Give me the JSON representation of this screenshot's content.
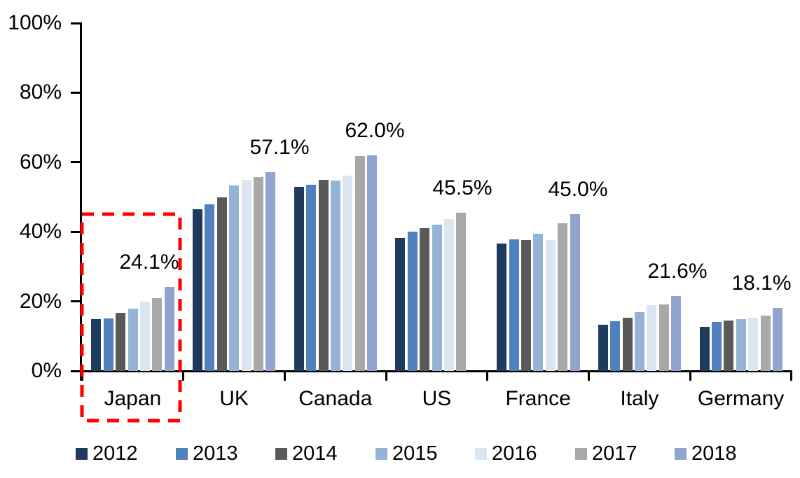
{
  "chart_data": {
    "type": "bar",
    "title": "",
    "categories": [
      "Japan",
      "UK",
      "Canada",
      "US",
      "France",
      "Italy",
      "Germany"
    ],
    "series": [
      {
        "name": "2012",
        "color": "#1F3A5F",
        "values": [
          14.9,
          46.4,
          53.0,
          38.2,
          36.6,
          13.3,
          12.6
        ]
      },
      {
        "name": "2013",
        "color": "#4E81BD",
        "values": [
          15.1,
          47.8,
          53.5,
          40.1,
          37.8,
          14.2,
          14.1
        ]
      },
      {
        "name": "2014",
        "color": "#595959",
        "values": [
          16.8,
          50.0,
          55.0,
          41.0,
          37.7,
          15.4,
          14.4
        ]
      },
      {
        "name": "2015",
        "color": "#95B3D7",
        "values": [
          17.9,
          53.3,
          54.7,
          42.1,
          39.5,
          16.9,
          14.8
        ]
      },
      {
        "name": "2016",
        "color": "#DCE6F2",
        "values": [
          20.0,
          54.9,
          56.2,
          43.7,
          37.6,
          19.0,
          15.3
        ]
      },
      {
        "name": "2017",
        "color": "#A8A8A8",
        "values": [
          21.0,
          55.8,
          61.7,
          45.5,
          42.4,
          19.2,
          15.9
        ]
      },
      {
        "name": "2018",
        "color": "#92A4CE",
        "values": [
          24.1,
          57.1,
          62.0,
          null,
          45.0,
          21.6,
          18.1
        ]
      }
    ],
    "annotations": [
      {
        "category": "Japan",
        "text": "24.1%"
      },
      {
        "category": "UK",
        "text": "57.1%"
      },
      {
        "category": "Canada",
        "text": "62.0%"
      },
      {
        "category": "US",
        "text": "45.5%"
      },
      {
        "category": "France",
        "text": "45.0%"
      },
      {
        "category": "Italy",
        "text": "21.6%"
      },
      {
        "category": "Germany",
        "text": "18.1%"
      }
    ],
    "y_axis": {
      "tick_labels": [
        "0%",
        "20%",
        "40%",
        "60%",
        "80%",
        "100%"
      ],
      "tick_values": [
        0,
        20,
        40,
        60,
        80,
        100
      ],
      "min": 0,
      "max": 100,
      "unit": "%",
      "grid": false
    },
    "legend": {
      "position": "bottom",
      "items": [
        "2012",
        "2013",
        "2014",
        "2015",
        "2016",
        "2017",
        "2018"
      ]
    },
    "highlight": {
      "target": "Japan",
      "style": "dashed-rectangle",
      "color": "#FF0000"
    }
  }
}
